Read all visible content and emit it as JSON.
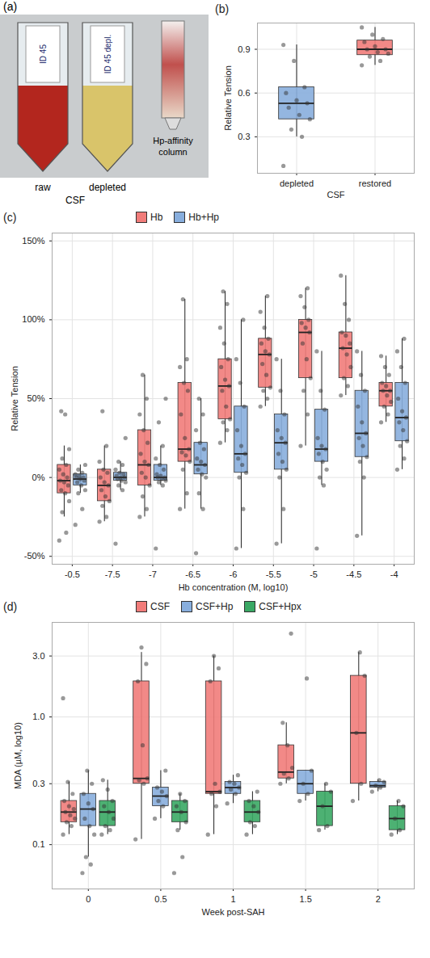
{
  "chart_data": [
    {
      "panel": "(a)",
      "type": "image",
      "tube_labels": [
        "ID 45",
        "ID 45 depl."
      ],
      "column_label": "Hp-affinity column",
      "captions": [
        "raw",
        "depleted"
      ],
      "group_label": "CSF"
    },
    {
      "panel": "(b)",
      "type": "box",
      "categories": [
        "depleted",
        "restored"
      ],
      "colors": [
        "#88aedd",
        "#f17c7a"
      ],
      "xlabel": "CSF",
      "ylabel": "Relative Tension",
      "ylim": [
        0.05,
        1.08
      ],
      "yticks": [
        0.3,
        0.6,
        0.9
      ],
      "grid": true,
      "series": [
        {
          "boxes": [
            {
              "whisker_low": 0.3,
              "q1": 0.42,
              "median": 0.53,
              "q3": 0.64,
              "whisker_high": 0.93,
              "points": [
                0.1,
                0.3,
                0.35,
                0.42,
                0.45,
                0.5,
                0.53,
                0.55,
                0.6,
                0.64,
                0.82,
                0.93
              ]
            },
            {
              "whisker_low": 0.79,
              "q1": 0.86,
              "median": 0.9,
              "q3": 0.96,
              "whisker_high": 1.05,
              "points": [
                0.79,
                0.82,
                0.85,
                0.87,
                0.88,
                0.9,
                0.9,
                0.92,
                0.95,
                0.97,
                1.0,
                1.05
              ]
            }
          ]
        }
      ]
    },
    {
      "panel": "(c)",
      "type": "box",
      "categories": [
        "-0.5",
        "-7.5",
        "-7",
        "-6.5",
        "-6",
        "-5.5",
        "-5",
        "-4.5",
        "-4"
      ],
      "xlabel": "Hb concentration (M, log10)",
      "ylabel": "Relative Tension",
      "ylim": [
        -55,
        155
      ],
      "yticks": [
        {
          "value": -50,
          "label": "-50%"
        },
        {
          "value": 0,
          "label": "0%"
        },
        {
          "value": 50,
          "label": "50%"
        },
        {
          "value": 100,
          "label": "100%"
        },
        {
          "value": 150,
          "label": "150%"
        }
      ],
      "grid": true,
      "legend": "top",
      "series": [
        {
          "name": "Hb",
          "color": "#f17c7a",
          "boxes": [
            {
              "whisker_low": -25,
              "q1": -10,
              "median": -2,
              "q3": 8,
              "whisker_high": 20,
              "points": [
                -40,
                -35,
                -22,
                -15,
                -10,
                -8,
                -5,
                -3,
                -2,
                0,
                2,
                5,
                8,
                12,
                18,
                40,
                42
              ]
            },
            {
              "whisker_low": -28,
              "q1": -15,
              "median": -5,
              "q3": 5,
              "whisker_high": 20,
              "points": [
                -28,
                -25,
                -18,
                -15,
                -12,
                -8,
                -5,
                -3,
                0,
                3,
                5,
                10,
                20,
                42
              ]
            },
            {
              "whisker_low": -25,
              "q1": -5,
              "median": 8,
              "q3": 30,
              "whisker_high": 65,
              "points": [
                -25,
                -20,
                -12,
                -5,
                0,
                3,
                8,
                10,
                15,
                22,
                30,
                40,
                50,
                65
              ]
            },
            {
              "whisker_low": -20,
              "q1": 10,
              "median": 18,
              "q3": 60,
              "whisker_high": 113,
              "points": [
                -20,
                -10,
                5,
                10,
                14,
                16,
                18,
                25,
                40,
                55,
                60,
                70,
                75,
                113
              ]
            },
            {
              "whisker_low": 22,
              "q1": 37,
              "median": 58,
              "q3": 75,
              "whisker_high": 118,
              "points": [
                22,
                30,
                35,
                37,
                45,
                55,
                58,
                62,
                70,
                75,
                85,
                95,
                110,
                118
              ]
            },
            {
              "whisker_low": 45,
              "q1": 57,
              "median": 78,
              "q3": 88,
              "whisker_high": 115,
              "points": [
                45,
                50,
                55,
                57,
                65,
                72,
                78,
                80,
                85,
                88,
                95,
                105,
                115
              ]
            },
            {
              "whisker_low": 20,
              "q1": 63,
              "median": 92,
              "q3": 100,
              "whisker_high": 120,
              "points": [
                20,
                40,
                55,
                63,
                75,
                85,
                92,
                95,
                98,
                100,
                108,
                115,
                120
              ]
            },
            {
              "whisker_low": 52,
              "q1": 63,
              "median": 82,
              "q3": 92,
              "whisker_high": 128,
              "points": [
                52,
                58,
                63,
                70,
                78,
                82,
                85,
                90,
                92,
                100,
                110,
                128
              ]
            },
            {
              "whisker_low": 35,
              "q1": 45,
              "median": 55,
              "q3": 60,
              "whisker_high": 77,
              "points": [
                35,
                40,
                45,
                48,
                52,
                55,
                55,
                58,
                60,
                65,
                70,
                77
              ]
            }
          ]
        },
        {
          "name": "Hb+Hp",
          "color": "#88aedd",
          "boxes": [
            {
              "whisker_low": -10,
              "q1": -5,
              "median": -1,
              "q3": 2,
              "whisker_high": 8,
              "points": [
                -30,
                -20,
                -10,
                -8,
                -5,
                -3,
                -2,
                -1,
                0,
                0,
                1,
                2,
                3,
                5,
                8
              ]
            },
            {
              "whisker_low": -8,
              "q1": -2,
              "median": 0,
              "q3": 3,
              "whisker_high": 10,
              "points": [
                -42,
                -8,
                -5,
                -3,
                -2,
                -1,
                0,
                0,
                1,
                2,
                3,
                5,
                8,
                10,
                25
              ]
            },
            {
              "whisker_low": -5,
              "q1": -2,
              "median": 0,
              "q3": 8,
              "whisker_high": 20,
              "points": [
                -45,
                -5,
                -3,
                -2,
                -1,
                0,
                0,
                1,
                2,
                5,
                8,
                12,
                20,
                35,
                50
              ]
            },
            {
              "whisker_low": -20,
              "q1": 2,
              "median": 8,
              "q3": 22,
              "whisker_high": 50,
              "points": [
                -48,
                -20,
                -10,
                0,
                2,
                5,
                8,
                10,
                12,
                18,
                22,
                30,
                40,
                50
              ]
            },
            {
              "whisker_low": -45,
              "q1": 3,
              "median": 15,
              "q3": 45,
              "whisker_high": 100,
              "points": [
                -45,
                -20,
                0,
                3,
                8,
                12,
                15,
                20,
                30,
                45,
                60,
                75,
                100
              ]
            },
            {
              "whisker_low": -42,
              "q1": 5,
              "median": 22,
              "q3": 40,
              "whisker_high": 75,
              "points": [
                -42,
                -20,
                0,
                5,
                10,
                15,
                22,
                25,
                30,
                40,
                55,
                75
              ]
            },
            {
              "whisker_low": -5,
              "q1": 10,
              "median": 18,
              "q3": 43,
              "whisker_high": 80,
              "points": [
                -45,
                -5,
                0,
                5,
                10,
                15,
                18,
                20,
                25,
                43,
                55,
                80
              ]
            },
            {
              "whisker_low": -37,
              "q1": 13,
              "median": 28,
              "q3": 55,
              "whisker_high": 80,
              "points": [
                -37,
                0,
                10,
                13,
                20,
                25,
                28,
                35,
                45,
                55,
                65,
                80
              ]
            },
            {
              "whisker_low": 5,
              "q1": 23,
              "median": 38,
              "q3": 60,
              "whisker_high": 88,
              "points": [
                5,
                12,
                20,
                23,
                30,
                35,
                38,
                42,
                50,
                60,
                70,
                80,
                88
              ]
            }
          ]
        }
      ]
    },
    {
      "panel": "(d)",
      "type": "box",
      "log": "y",
      "categories": [
        "0",
        "0.5",
        "1",
        "1.5",
        "2"
      ],
      "xlabel": "Week post-SAH",
      "ylabel": "MDA (µM, log10)",
      "ylim": [
        0.045,
        5.5
      ],
      "yticks": [
        0.1,
        0.3,
        {
          "value": 1,
          "label": "1.0"
        },
        {
          "value": 3,
          "label": "3.0"
        }
      ],
      "grid": true,
      "legend": "top",
      "series": [
        {
          "name": "CSF",
          "color": "#f17c7a",
          "boxes": [
            {
              "whisker_low": 0.12,
              "q1": 0.15,
              "median": 0.18,
              "q3": 0.22,
              "whisker_high": 0.31,
              "points": [
                0.12,
                0.14,
                0.15,
                0.16,
                0.17,
                0.18,
                0.19,
                0.2,
                0.22,
                0.25,
                0.31,
                1.4
              ]
            },
            {
              "whisker_low": 0.11,
              "q1": 0.3,
              "median": 0.33,
              "q3": 1.9,
              "whisker_high": 3.2,
              "points": [
                0.11,
                0.3,
                0.32,
                0.33,
                0.6,
                1.9,
                2.6,
                3.5
              ]
            },
            {
              "whisker_low": 0.12,
              "q1": 0.25,
              "median": 0.26,
              "q3": 1.9,
              "whisker_high": 3.0,
              "points": [
                0.12,
                0.2,
                0.25,
                0.26,
                0.3,
                1.9,
                2.4,
                3.0
              ]
            },
            {
              "whisker_low": 0.3,
              "q1": 0.33,
              "median": 0.37,
              "q3": 0.6,
              "whisker_high": 0.9,
              "points": [
                0.3,
                0.33,
                0.36,
                0.4,
                0.6,
                0.9,
                4.5
              ]
            },
            {
              "whisker_low": 0.22,
              "q1": 0.3,
              "median": 0.75,
              "q3": 2.1,
              "whisker_high": 3.2,
              "points": [
                0.22,
                0.3,
                0.75,
                2.1,
                3.2
              ]
            }
          ]
        },
        {
          "name": "CSF+Hp",
          "color": "#88aedd",
          "boxes": [
            {
              "whisker_low": 0.08,
              "q1": 0.14,
              "median": 0.19,
              "q3": 0.25,
              "whisker_high": 0.38,
              "points": [
                0.06,
                0.07,
                0.08,
                0.12,
                0.14,
                0.16,
                0.19,
                0.21,
                0.25,
                0.3,
                0.38
              ]
            },
            {
              "whisker_low": 0.16,
              "q1": 0.2,
              "median": 0.24,
              "q3": 0.28,
              "whisker_high": 0.38,
              "points": [
                0.16,
                0.2,
                0.22,
                0.24,
                0.26,
                0.28,
                0.38
              ]
            },
            {
              "whisker_low": 0.21,
              "q1": 0.25,
              "median": 0.28,
              "q3": 0.31,
              "whisker_high": 0.35,
              "points": [
                0.21,
                0.25,
                0.27,
                0.28,
                0.3,
                0.31,
                0.35
              ]
            },
            {
              "whisker_low": 0.22,
              "q1": 0.25,
              "median": 0.3,
              "q3": 0.38,
              "whisker_high": 0.38,
              "points": [
                0.22,
                0.25,
                0.3,
                0.38,
                2.0
              ]
            },
            {
              "whisker_low": 0.26,
              "q1": 0.28,
              "median": 0.29,
              "q3": 0.31,
              "whisker_high": 0.32,
              "points": [
                0.26,
                0.28,
                0.29,
                0.31,
                0.32
              ]
            }
          ]
        },
        {
          "name": "CSF+Hpx",
          "color": "#3aa864",
          "boxes": [
            {
              "whisker_low": 0.12,
              "q1": 0.14,
              "median": 0.18,
              "q3": 0.22,
              "whisker_high": 0.32,
              "points": [
                0.12,
                0.13,
                0.14,
                0.16,
                0.18,
                0.2,
                0.22,
                0.27,
                0.32
              ]
            },
            {
              "whisker_low": 0.13,
              "q1": 0.15,
              "median": 0.18,
              "q3": 0.22,
              "whisker_high": 0.25,
              "points": [
                0.06,
                0.08,
                0.13,
                0.15,
                0.18,
                0.2,
                0.22,
                0.25
              ]
            },
            {
              "whisker_low": 0.12,
              "q1": 0.15,
              "median": 0.18,
              "q3": 0.22,
              "whisker_high": 0.26,
              "points": [
                0.12,
                0.14,
                0.15,
                0.18,
                0.2,
                0.22,
                0.26
              ]
            },
            {
              "whisker_low": 0.13,
              "q1": 0.14,
              "median": 0.2,
              "q3": 0.26,
              "whisker_high": 0.3,
              "points": [
                0.13,
                0.14,
                0.2,
                0.26,
                0.3
              ]
            },
            {
              "whisker_low": 0.12,
              "q1": 0.13,
              "median": 0.16,
              "q3": 0.2,
              "whisker_high": 0.22,
              "points": [
                0.12,
                0.13,
                0.16,
                0.2,
                0.22
              ]
            }
          ]
        }
      ]
    }
  ]
}
